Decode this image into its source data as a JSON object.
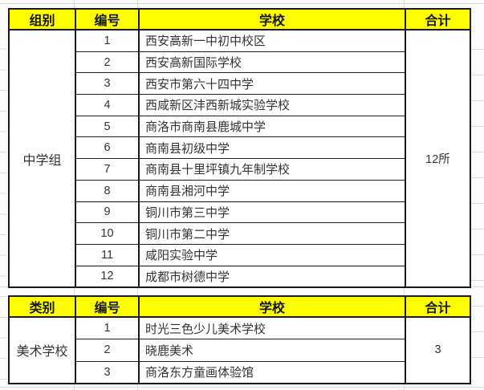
{
  "colors": {
    "background": "#fbfbfb",
    "header_bg": "#fefe00",
    "header_text": "#151515",
    "body_text": "#333333",
    "border": "#1c1c1c",
    "gridline": "#dcdcdc"
  },
  "middle_school_table": {
    "headers": [
      "组别",
      "编号",
      "学校",
      "合计"
    ],
    "group_label": "中学组",
    "total": "12所",
    "rows": [
      {
        "no": "1",
        "school": "西安高新一中初中校区"
      },
      {
        "no": "2",
        "school": "西安高新国际学校"
      },
      {
        "no": "3",
        "school": "西安市第六十四中学"
      },
      {
        "no": "4",
        "school": "西咸新区沣西新城实验学校"
      },
      {
        "no": "5",
        "school": "商洛市商南县鹿城中学"
      },
      {
        "no": "6",
        "school": "商南县初级中学"
      },
      {
        "no": "7",
        "school": "商南县十里坪镇九年制学校"
      },
      {
        "no": "8",
        "school": "商南县湘河中学"
      },
      {
        "no": "9",
        "school": "铜川市第三中学"
      },
      {
        "no": "10",
        "school": "铜川市第二中学"
      },
      {
        "no": "11",
        "school": "咸阳实验中学"
      },
      {
        "no": "12",
        "school": "成都市树德中学"
      }
    ]
  },
  "art_school_table": {
    "headers": [
      "类别",
      "编号",
      "学校",
      "合计"
    ],
    "group_label": "美术学校",
    "total": "3",
    "rows": [
      {
        "no": "1",
        "school": "时光三色少儿美术学校"
      },
      {
        "no": "2",
        "school": "晓鹿美术"
      },
      {
        "no": "3",
        "school": "商洛东方童画体验馆"
      }
    ]
  }
}
